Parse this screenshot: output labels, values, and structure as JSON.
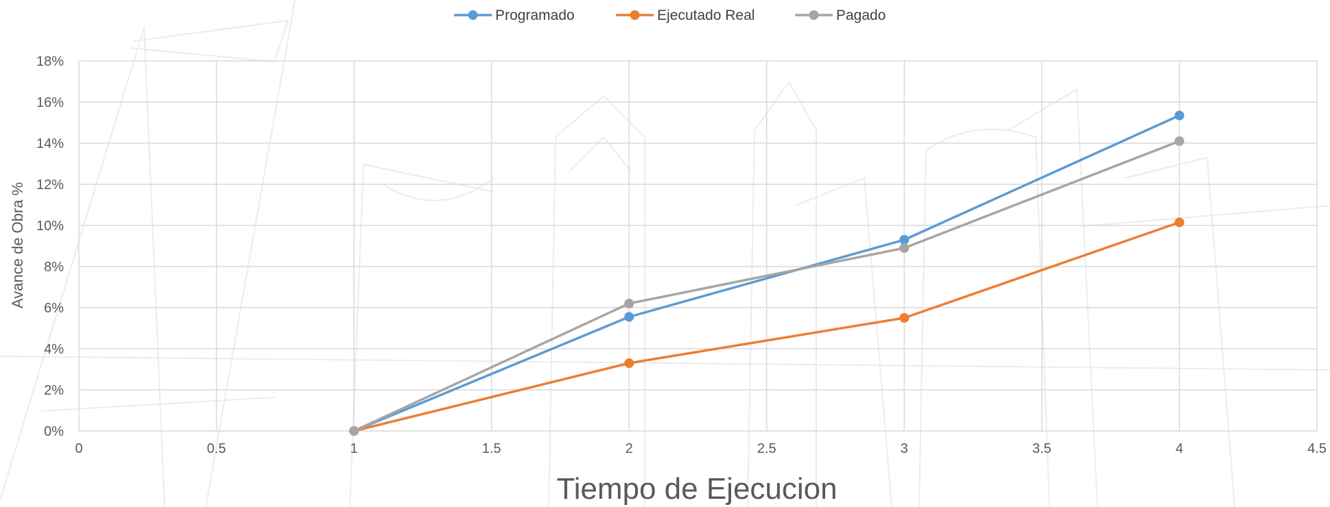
{
  "chart_data": {
    "type": "line",
    "title": "",
    "xlabel": "Tiempo de Ejecucion",
    "ylabel": "Avance de Obra %",
    "xlim": [
      0,
      4.5
    ],
    "ylim": [
      0,
      0.18
    ],
    "x_ticks": [
      "0",
      "0.5",
      "1",
      "1.5",
      "2",
      "2.5",
      "3",
      "3.5",
      "4",
      "4.5"
    ],
    "y_ticks": [
      "0%",
      "2%",
      "4%",
      "6%",
      "8%",
      "10%",
      "12%",
      "14%",
      "16%",
      "18%"
    ],
    "grid": true,
    "legend_position": "top-center",
    "x": [
      1,
      2,
      3,
      4
    ],
    "series": [
      {
        "name": "Programado",
        "color": "#5b9bd5",
        "values": [
          0,
          0.0555,
          0.093,
          0.1535
        ]
      },
      {
        "name": "Ejecutado Real",
        "color": "#ed7d31",
        "values": [
          0,
          0.033,
          0.055,
          0.1015
        ]
      },
      {
        "name": "Pagado",
        "color": "#a5a5a5",
        "values": [
          0,
          0.062,
          0.089,
          0.141
        ]
      }
    ]
  }
}
